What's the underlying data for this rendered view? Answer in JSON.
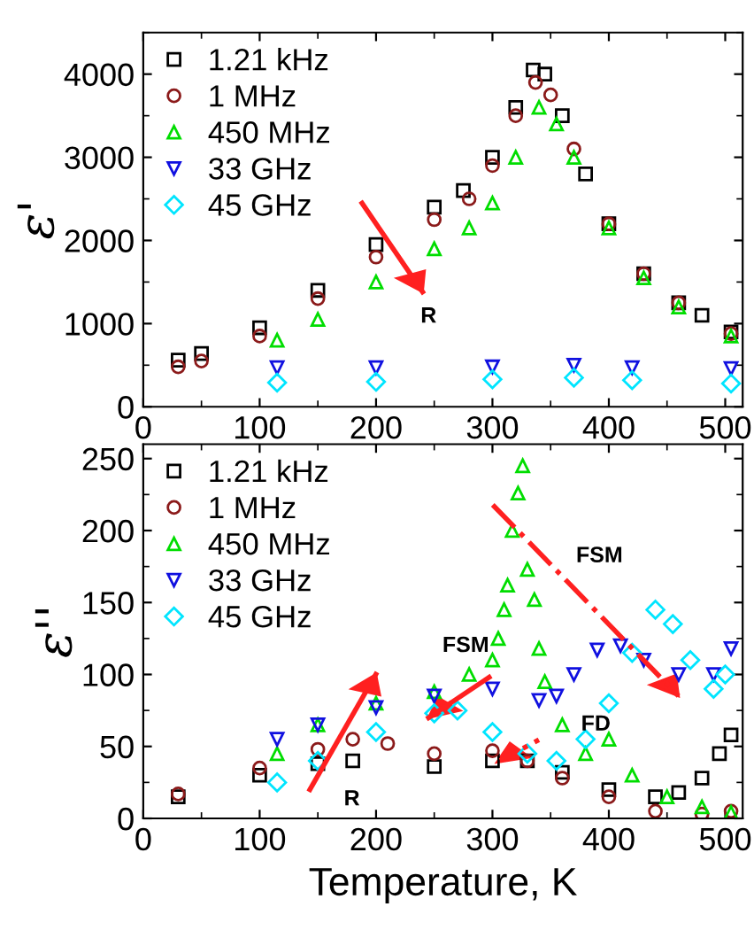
{
  "chart_data": [
    {
      "type": "scatter",
      "ylabel": "ε'",
      "xlim": [
        0,
        515
      ],
      "ylim": [
        0,
        4500
      ],
      "xticks": [
        0,
        100,
        200,
        300,
        400,
        500
      ],
      "yticks": [
        0,
        1000,
        2000,
        3000,
        4000
      ],
      "legend": "top left",
      "annotations": [
        "R"
      ],
      "series": [
        {
          "name": "1.21 kHz",
          "color": "#000000",
          "marker": "square",
          "x": [
            30,
            50,
            100,
            150,
            200,
            250,
            275,
            300,
            320,
            335,
            345,
            360,
            380,
            400,
            430,
            460,
            480,
            505
          ],
          "values": [
            560,
            640,
            950,
            1400,
            1950,
            2400,
            2600,
            3000,
            3600,
            4050,
            4000,
            3500,
            2800,
            2200,
            1600,
            1250,
            1100,
            900
          ]
        },
        {
          "name": "1 MHz",
          "color": "#8b1a1a",
          "marker": "circle",
          "x": [
            30,
            50,
            100,
            150,
            200,
            250,
            280,
            300,
            320,
            337,
            350,
            370,
            400,
            430,
            460,
            505
          ],
          "values": [
            480,
            550,
            850,
            1300,
            1800,
            2250,
            2500,
            2900,
            3500,
            3900,
            3750,
            3100,
            2200,
            1600,
            1250,
            880
          ]
        },
        {
          "name": "450 MHz",
          "color": "#00dd00",
          "marker": "triangle",
          "x": [
            115,
            150,
            200,
            250,
            280,
            300,
            320,
            340,
            355,
            370,
            400,
            430,
            460,
            505
          ],
          "values": [
            800,
            1050,
            1500,
            1900,
            2150,
            2450,
            3000,
            3600,
            3400,
            3000,
            2150,
            1550,
            1200,
            850
          ]
        },
        {
          "name": "33 GHz",
          "color": "#1010e0",
          "marker": "triangle_down",
          "x": [
            115,
            200,
            300,
            370,
            420,
            505
          ],
          "values": [
            470,
            470,
            480,
            500,
            470,
            460
          ]
        },
        {
          "name": "45 GHz",
          "color": "#00e5ff",
          "marker": "diamond",
          "x": [
            115,
            200,
            300,
            370,
            420,
            505
          ],
          "values": [
            290,
            300,
            330,
            350,
            320,
            280
          ]
        }
      ]
    },
    {
      "type": "scatter",
      "ylabel": "ε''",
      "xlabel": "Temperature, K",
      "xlim": [
        0,
        515
      ],
      "ylim": [
        0,
        260
      ],
      "xticks": [
        0,
        100,
        200,
        300,
        400,
        500
      ],
      "yticks": [
        0,
        50,
        100,
        150,
        200,
        250
      ],
      "legend": "top left",
      "annotations": [
        "R",
        "FSM",
        "FSM",
        "FD"
      ],
      "series": [
        {
          "name": "1.21 kHz",
          "color": "#000000",
          "marker": "square",
          "x": [
            30,
            100,
            150,
            180,
            250,
            300,
            330,
            360,
            400,
            440,
            460,
            480,
            495,
            505
          ],
          "values": [
            15,
            30,
            38,
            40,
            36,
            40,
            40,
            32,
            20,
            15,
            18,
            28,
            45,
            58
          ]
        },
        {
          "name": "1 MHz",
          "color": "#8b1a1a",
          "marker": "circle",
          "x": [
            30,
            100,
            150,
            180,
            210,
            250,
            300,
            330,
            360,
            400,
            440,
            480,
            505
          ],
          "values": [
            17,
            35,
            48,
            55,
            52,
            45,
            47,
            40,
            28,
            15,
            5,
            3,
            5
          ]
        },
        {
          "name": "450 MHz",
          "color": "#00dd00",
          "marker": "triangle",
          "x": [
            115,
            150,
            200,
            250,
            280,
            300,
            305,
            310,
            313,
            317,
            322,
            326,
            330,
            336,
            340,
            345,
            360,
            380,
            400,
            420,
            450,
            480,
            505
          ],
          "values": [
            45,
            65,
            80,
            88,
            100,
            110,
            125,
            145,
            162,
            200,
            226,
            245,
            173,
            152,
            118,
            95,
            65,
            45,
            55,
            30,
            15,
            8,
            4
          ]
        },
        {
          "name": "33 GHz",
          "color": "#1010e0",
          "marker": "triangle_down",
          "x": [
            115,
            150,
            200,
            250,
            300,
            340,
            355,
            370,
            390,
            410,
            430,
            460,
            490,
            505
          ],
          "values": [
            55,
            65,
            77,
            85,
            90,
            82,
            85,
            100,
            117,
            120,
            110,
            100,
            100,
            118
          ]
        },
        {
          "name": "45 GHz",
          "color": "#00e5ff",
          "marker": "diamond",
          "x": [
            115,
            150,
            200,
            250,
            270,
            300,
            330,
            355,
            380,
            400,
            420,
            440,
            455,
            470,
            490,
            500
          ],
          "values": [
            25,
            40,
            60,
            73,
            75,
            60,
            45,
            40,
            55,
            80,
            115,
            145,
            135,
            110,
            90,
            100
          ]
        }
      ]
    }
  ]
}
